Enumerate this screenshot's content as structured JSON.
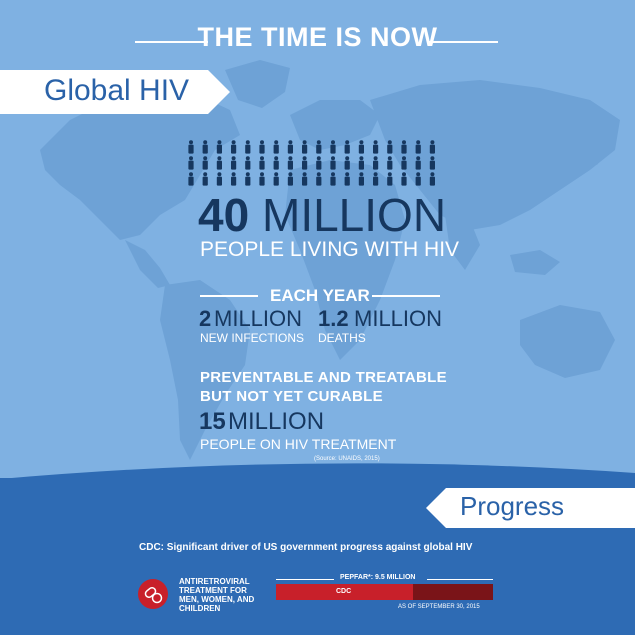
{
  "header": {
    "title": "THE TIME IS NOW"
  },
  "global_banner": {
    "label": "Global HIV"
  },
  "living": {
    "number": "40",
    "unit": "MILLION",
    "caption": "PEOPLE LIVING WITH HIV"
  },
  "each_year": {
    "heading": "EACH YEAR",
    "infections_number": "2",
    "infections_unit": "MILLION",
    "infections_caption": "NEW INFECTIONS",
    "deaths_number": "1.2",
    "deaths_unit": "MILLION",
    "deaths_caption": "DEATHS"
  },
  "treatable": {
    "line1": "PREVENTABLE AND TREATABLE",
    "line2": "BUT NOT YET CURABLE",
    "number": "15",
    "unit": "MILLION",
    "caption": "PEOPLE ON HIV TREATMENT",
    "source": "(Source: UNAIDS, 2015)"
  },
  "progress_banner": {
    "label": "Progress"
  },
  "cdc_driver": {
    "text": "CDC: Significant driver of US government progress against global HIV"
  },
  "treatment_label": {
    "line1": "ANTIRETROVIRAL",
    "line2": "TREATMENT FOR",
    "line3": "MEN, WOMEN, AND",
    "line4": "CHILDREN"
  },
  "pepfar_bar": {
    "label": "PEPFAR*: 9.5 MILLION",
    "cdc_label": "CDC",
    "cdc_share": 0.63,
    "as_of": "AS OF SEPTEMBER 30, 2015"
  },
  "icon": "pill-capsule-icon",
  "colors": {
    "background": "#7fb1e2",
    "panel": "#2e6bb4",
    "dark_text": "#16375f",
    "accent_red": "#c8202a",
    "dark_red": "#7a1418"
  },
  "people_icon_rows": [
    18,
    18,
    18
  ]
}
